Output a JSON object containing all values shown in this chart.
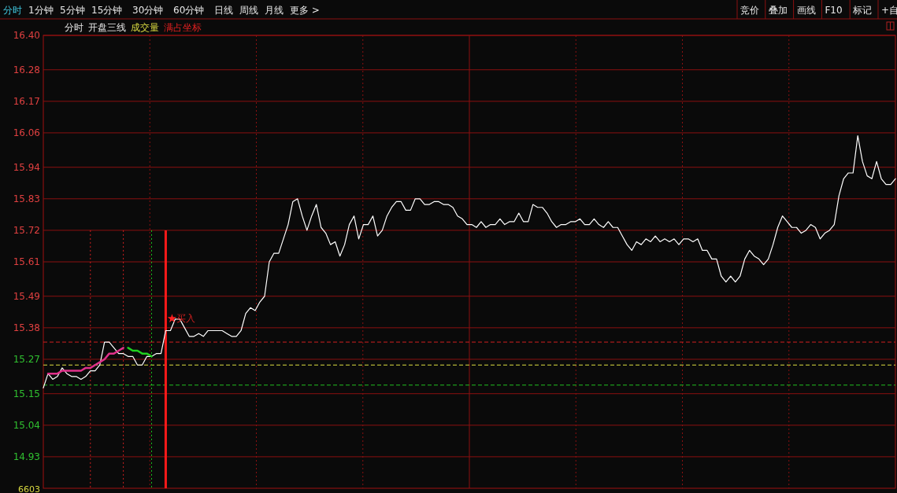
{
  "chart_data": {
    "type": "line",
    "grid": true,
    "tick_labels": "y",
    "categories": [
      null,
      null,
      null,
      null,
      null,
      null,
      null,
      null,
      null,
      null,
      null,
      null,
      null,
      null,
      null,
      null,
      null,
      null,
      null,
      null,
      null,
      null,
      null,
      null,
      null,
      null,
      null,
      null,
      null,
      null,
      null,
      null,
      null,
      null,
      null,
      null,
      null,
      null,
      null,
      null,
      null,
      null,
      null,
      null,
      null,
      null,
      null,
      null,
      null,
      null,
      null,
      null,
      null,
      null,
      null,
      null,
      null,
      null,
      null,
      null,
      null,
      null,
      null,
      null,
      null,
      null,
      null,
      null,
      null,
      null,
      null,
      null,
      null,
      null,
      null,
      null,
      null,
      null,
      null,
      null,
      null,
      null,
      null,
      null,
      null,
      null,
      null,
      null,
      null,
      null,
      null,
      null,
      null,
      null,
      null,
      null,
      null,
      null,
      null,
      null,
      null,
      null,
      null,
      null,
      null,
      null,
      null,
      null,
      null,
      null,
      null,
      null,
      null,
      null,
      null,
      null,
      null,
      null,
      null,
      null,
      null,
      null,
      null,
      null,
      null,
      null,
      null,
      null,
      null,
      null,
      null,
      null,
      null,
      null,
      null,
      null,
      null,
      null,
      null,
      null,
      null,
      null,
      null,
      null,
      null,
      null,
      null,
      null,
      null,
      null,
      null,
      null,
      null,
      null,
      null,
      null,
      null,
      null,
      null,
      null,
      null,
      null,
      null,
      null,
      null,
      null,
      null,
      null,
      null,
      null,
      null,
      null,
      null,
      null,
      null,
      null,
      null,
      null,
      null,
      null,
      null,
      null
    ],
    "ylim": [
      14.82,
      16.4
    ],
    "yticks": [
      {
        "value": 14.93,
        "label": "14.93"
      },
      {
        "value": 15.04,
        "label": "15.04"
      },
      {
        "value": 15.15,
        "label": "15.15"
      },
      {
        "value": 15.27,
        "label": "15.27"
      },
      {
        "value": 15.38,
        "label": "15.38"
      },
      {
        "value": 15.49,
        "label": "15.49"
      },
      {
        "value": 15.61,
        "label": "15.61"
      },
      {
        "value": 15.72,
        "label": "15.72"
      },
      {
        "value": 15.83,
        "label": "15.83"
      },
      {
        "value": 15.94,
        "label": "15.94"
      },
      {
        "value": 16.06,
        "label": "16.06"
      },
      {
        "value": 16.17,
        "label": "16.17"
      },
      {
        "value": 16.28,
        "label": "16.28"
      },
      {
        "value": 16.4,
        "label": "16.40"
      }
    ],
    "series": [
      {
        "color": "#ffffff",
        "values": [
          15.17,
          15.22,
          15.2,
          15.21,
          15.24,
          15.22,
          15.21,
          15.21,
          15.2,
          15.21,
          15.23,
          15.23,
          15.25,
          15.33,
          15.33,
          15.31,
          15.29,
          15.29,
          15.28,
          15.28,
          15.25,
          15.25,
          15.28,
          15.28,
          15.29,
          15.29,
          15.37,
          15.37,
          15.41,
          15.41,
          15.38,
          15.35,
          15.35,
          15.36,
          15.35,
          15.37,
          15.37,
          15.37,
          15.37,
          15.36,
          15.35,
          15.35,
          15.37,
          15.43,
          15.45,
          15.44,
          15.47,
          15.49,
          15.61,
          15.64,
          15.64,
          15.69,
          15.74,
          15.82,
          15.83,
          15.77,
          15.72,
          15.77,
          15.81,
          15.73,
          15.71,
          15.67,
          15.68,
          15.63,
          15.67,
          15.74,
          15.77,
          15.69,
          15.74,
          15.74,
          15.77,
          15.7,
          15.72,
          15.77,
          15.8,
          15.82,
          15.82,
          15.79,
          15.79,
          15.83,
          15.83,
          15.81,
          15.81,
          15.82,
          15.82,
          15.81,
          15.81,
          15.8,
          15.77,
          15.76,
          15.74,
          15.74,
          15.73,
          15.75,
          15.73,
          15.74,
          15.74,
          15.76,
          15.74,
          15.75,
          15.75,
          15.78,
          15.75,
          15.75,
          15.81,
          15.8,
          15.8,
          15.78,
          15.75,
          15.73,
          15.74,
          15.74,
          15.75,
          15.75,
          15.76,
          15.74,
          15.74,
          15.76,
          15.74,
          15.73,
          15.75,
          15.73,
          15.73,
          15.7,
          15.67,
          15.65,
          15.68,
          15.67,
          15.69,
          15.68,
          15.7,
          15.68,
          15.69,
          15.68,
          15.69,
          15.67,
          15.69,
          15.69,
          15.68,
          15.69,
          15.65,
          15.65,
          15.62,
          15.62,
          15.56,
          15.54,
          15.56,
          15.54,
          15.56,
          15.62,
          15.65,
          15.63,
          15.62,
          15.6,
          15.62,
          15.67,
          15.73,
          15.77,
          15.75,
          15.73,
          15.73,
          15.71,
          15.72,
          15.74,
          15.73,
          15.69,
          15.71,
          15.72,
          15.74,
          15.84,
          15.9,
          15.92,
          15.92,
          16.05,
          15.96,
          15.91,
          15.9,
          15.96,
          15.9,
          15.88,
          15.88,
          15.9
        ]
      },
      {
        "color": "#e0308a",
        "values": [
          null,
          15.22,
          15.22,
          15.22,
          15.23,
          15.23,
          15.23,
          15.23,
          15.23,
          15.24,
          15.24,
          15.25,
          15.26,
          15.27,
          15.29,
          15.29,
          15.3,
          15.31,
          null,
          null,
          null,
          null,
          null,
          null,
          null,
          null,
          null,
          null,
          null,
          null,
          null,
          null,
          null,
          null,
          null,
          null,
          null,
          null,
          null,
          null,
          null,
          null,
          null,
          null,
          null,
          null,
          null,
          null,
          null,
          null,
          null,
          null,
          null,
          null,
          null,
          null,
          null,
          null,
          null,
          null,
          null,
          null,
          null,
          null,
          null,
          null,
          null,
          null,
          null,
          null,
          null,
          null,
          null,
          null,
          null,
          null,
          null,
          null,
          null,
          null,
          null,
          null,
          null,
          null,
          null,
          null,
          null,
          null,
          null,
          null,
          null,
          null,
          null,
          null,
          null,
          null,
          null,
          null,
          null,
          null,
          null,
          null,
          null,
          null,
          null,
          null,
          null,
          null,
          null,
          null,
          null,
          null,
          null,
          null,
          null,
          null,
          null,
          null,
          null,
          null,
          null,
          null,
          null,
          null,
          null,
          null,
          null,
          null,
          null,
          null,
          null,
          null,
          null,
          null,
          null,
          null,
          null,
          null,
          null,
          null,
          null,
          null,
          null,
          null,
          null,
          null,
          null,
          null,
          null,
          null,
          null,
          null,
          null,
          null,
          null,
          null,
          null,
          null,
          null,
          null,
          null,
          null,
          null,
          null,
          null,
          null,
          null,
          null,
          null,
          null,
          null,
          null,
          null,
          null,
          null,
          null,
          null,
          null,
          null,
          null,
          null,
          null
        ]
      },
      {
        "color": "#20d020",
        "values": [
          null,
          null,
          null,
          null,
          null,
          null,
          null,
          null,
          null,
          null,
          null,
          null,
          null,
          null,
          null,
          null,
          null,
          null,
          15.31,
          15.3,
          15.3,
          15.29,
          15.29,
          15.28,
          null,
          null,
          null,
          null,
          null,
          null,
          null,
          null,
          null,
          null,
          null,
          null,
          null,
          null,
          null,
          null,
          null,
          null,
          null,
          null,
          null,
          null,
          null,
          null,
          null,
          null,
          null,
          null,
          null,
          null,
          null,
          null,
          null,
          null,
          null,
          null,
          null,
          null,
          null,
          null,
          null,
          null,
          null,
          null,
          null,
          null,
          null,
          null,
          null,
          null,
          null,
          null,
          null,
          null,
          null,
          null,
          null,
          null,
          null,
          null,
          null,
          null,
          null,
          null,
          null,
          null,
          null,
          null,
          null,
          null,
          null,
          null,
          null,
          null,
          null,
          null,
          null,
          null,
          null,
          null,
          null,
          null,
          null,
          null,
          null,
          null,
          null,
          null,
          null,
          null,
          null,
          null,
          null,
          null,
          null,
          null,
          null,
          null,
          null,
          null,
          null,
          null,
          null,
          null,
          null,
          null,
          null,
          null,
          null,
          null,
          null,
          null,
          null,
          null,
          null,
          null,
          null,
          null,
          null,
          null,
          null,
          null,
          null,
          null,
          null,
          null,
          null,
          null,
          null,
          null,
          null,
          null,
          null,
          null,
          null,
          null,
          null,
          null,
          null,
          null,
          null,
          null,
          null,
          null,
          null,
          null,
          null,
          null,
          null,
          null,
          null,
          null,
          null,
          null,
          null,
          null,
          null,
          null
        ]
      }
    ],
    "ref_lines": [
      {
        "axis": "y",
        "value": 15.33,
        "color": "#d02020",
        "line_style": "dashed"
      },
      {
        "axis": "y",
        "value": 15.25,
        "color": "#e0e040",
        "line_style": "dashed"
      },
      {
        "axis": "y",
        "value": 15.18,
        "color": "#20c020",
        "line_style": "dashed"
      }
    ],
    "annotations": [
      "分时",
      "1分钟",
      "5分钟",
      "15分钟",
      "30分钟",
      "60分钟",
      "日线",
      "周线",
      "月线",
      "更多 >",
      "竞价",
      "叠加",
      "画线",
      "F10",
      "标记",
      "+自",
      "分时",
      "开盘三线",
      "成交量",
      "满占坐标",
      "6603",
      {
        "text": "买入",
        "y": 15.39
      }
    ]
  }
}
